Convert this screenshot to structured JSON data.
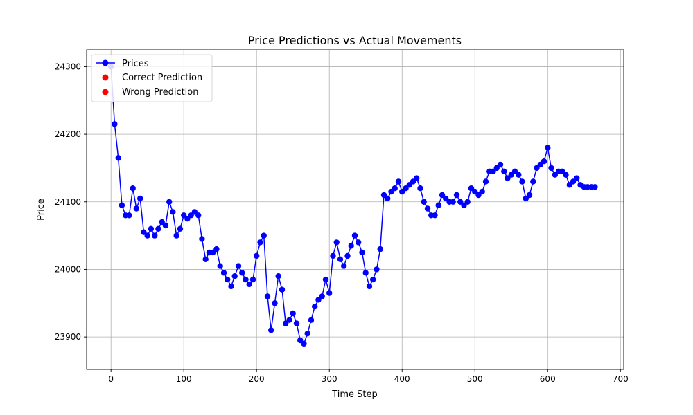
{
  "chart_data": {
    "type": "line",
    "title": "Price Predictions vs Actual Movements",
    "xlabel": "Time Step",
    "ylabel": "Price",
    "xlim": [
      -33.5,
      704.5
    ],
    "ylim": [
      23852,
      24325
    ],
    "xticks": [
      0,
      100,
      200,
      300,
      400,
      500,
      600,
      700
    ],
    "yticks": [
      23900,
      24000,
      24100,
      24200,
      24300
    ],
    "grid": true,
    "legend_position": "top-left",
    "legend": [
      "Prices",
      "Correct Prediction",
      "Wrong Prediction"
    ],
    "colors": {
      "prices": "#0000ff",
      "correct_prediction": "#ff0000",
      "wrong_prediction": "#ff0000",
      "grid": "#b0b0b0"
    },
    "series": [
      {
        "name": "Prices",
        "x_start": 0,
        "x_step": 5,
        "values": [
          24300,
          24215,
          24165,
          24095,
          24080,
          24080,
          24120,
          24090,
          24105,
          24055,
          24050,
          24060,
          24050,
          24060,
          24070,
          24065,
          24100,
          24085,
          24050,
          24060,
          24080,
          24075,
          24080,
          24085,
          24080,
          24045,
          24015,
          24025,
          24025,
          24030,
          24005,
          23995,
          23985,
          23975,
          23990,
          24005,
          23995,
          23985,
          23978,
          23985,
          24020,
          24040,
          24050,
          23960,
          23910,
          23950,
          23990,
          23970,
          23920,
          23925,
          23935,
          23920,
          23895,
          23890,
          23905,
          23925,
          23945,
          23955,
          23960,
          23985,
          23965,
          24020,
          24040,
          24015,
          24005,
          24020,
          24035,
          24050,
          24040,
          24025,
          23995,
          23975,
          23985,
          24000,
          24030,
          24110,
          24105,
          24115,
          24120,
          24130,
          24115,
          24120,
          24125,
          24130,
          24135,
          24120,
          24100,
          24090,
          24080,
          24080,
          24095,
          24110,
          24105,
          24100,
          24100,
          24110,
          24100,
          24095,
          24100,
          24120,
          24115,
          24110,
          24115,
          24130,
          24145,
          24145,
          24150,
          24155,
          24145,
          24135,
          24140,
          24145,
          24140,
          24130,
          24105,
          24110,
          24130,
          24150,
          24155,
          24160,
          24180,
          24150,
          24140,
          24145,
          24145,
          24140,
          24125,
          24130,
          24135,
          24125,
          24122,
          24122,
          24122,
          24122
        ]
      }
    ]
  }
}
